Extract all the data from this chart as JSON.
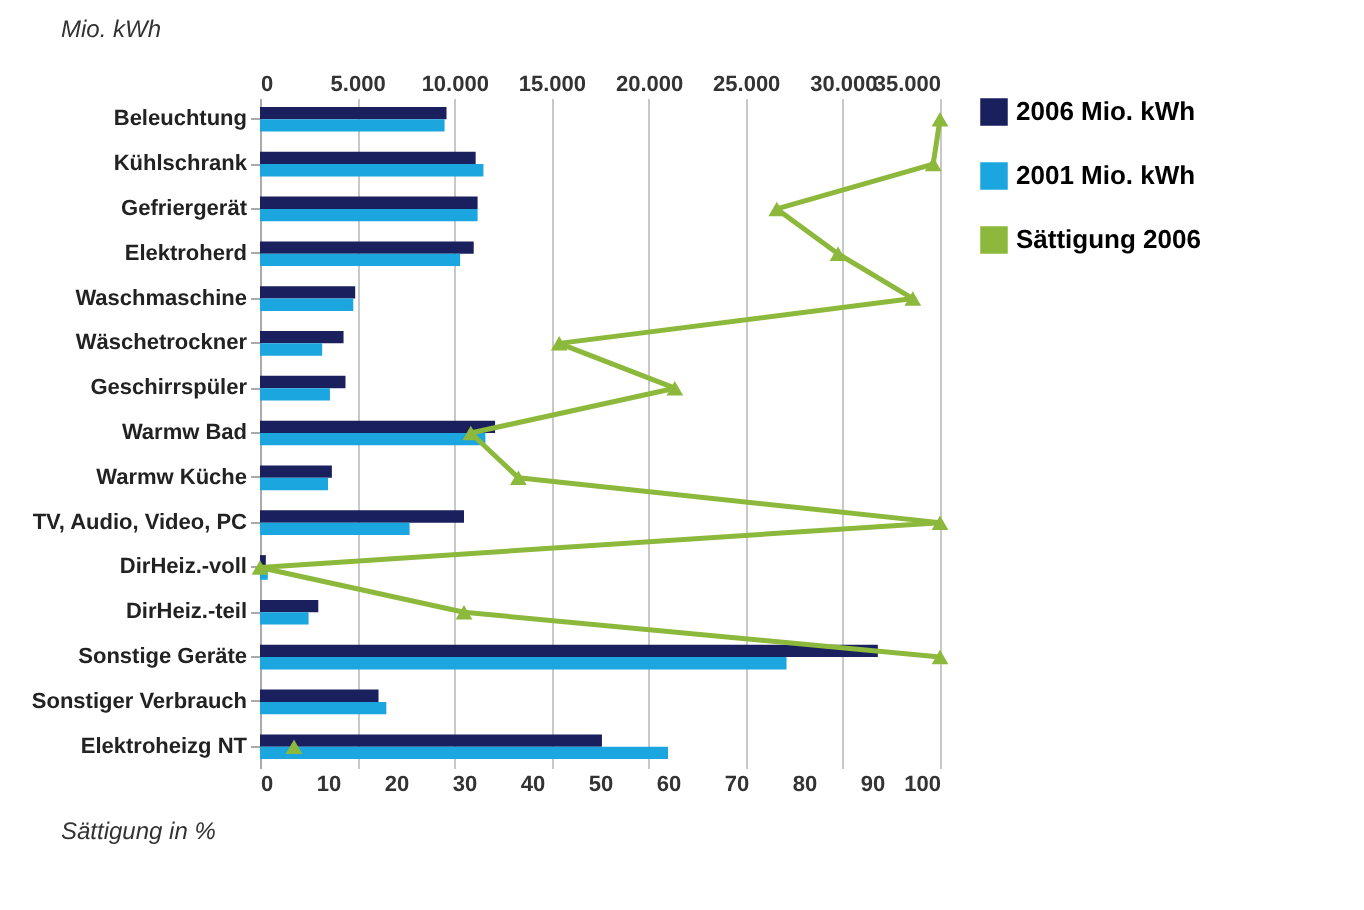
{
  "chart_data": {
    "type": "bar",
    "orientation": "horizontal",
    "categories": [
      "Beleuchtung",
      "Kühlschrank",
      "Gefriergerät",
      "Elektroherd",
      "Waschmaschine",
      "Wäschetrockner",
      "Geschirrspüler",
      "Warmw Bad",
      "Warmw Küche",
      "TV, Audio, Video, PC",
      "DirHeiz.-voll",
      "DirHeiz.-teil",
      "Sonstige Geräte",
      "Sonstiger Verbrauch",
      "Elektroheizg NT"
    ],
    "series": [
      {
        "name": "2006 Mio. kWh",
        "color": "#1a1f5e",
        "axis": "x2",
        "values": [
          9600,
          11100,
          11200,
          11000,
          4900,
          4300,
          4400,
          12100,
          3700,
          10500,
          300,
          3000,
          31800,
          6100,
          17600
        ]
      },
      {
        "name": "2001 Mio. kWh",
        "color": "#1ba6e0",
        "axis": "x2",
        "values": [
          9500,
          11500,
          11200,
          10300,
          4800,
          3200,
          3600,
          11600,
          3500,
          7700,
          400,
          2500,
          27100,
          6500,
          21000
        ]
      },
      {
        "name": "Sättigung 2006",
        "type": "line",
        "color": "#8cb83c",
        "marker": "triangle",
        "values": [
          100,
          99,
          76,
          85,
          96,
          44,
          61,
          31,
          38,
          100,
          0,
          30,
          100,
          null,
          5
        ]
      }
    ],
    "xlabel": "Sättigung in %",
    "x2label": "Mio. kWh",
    "xlim": [
      0,
      100
    ],
    "xticks": [
      0,
      10,
      20,
      30,
      40,
      50,
      60,
      70,
      80,
      90,
      100
    ],
    "x2lim": [
      0,
      35000
    ],
    "x2ticks": [
      0,
      {
        "value": 5000,
        "label": "5.000"
      },
      {
        "value": 10000,
        "label": "10.000"
      },
      {
        "value": 15000,
        "label": "15.000"
      },
      {
        "value": 20000,
        "label": "20.000"
      },
      {
        "value": 25000,
        "label": "25.000"
      },
      {
        "value": 30000,
        "label": "30.000"
      },
      {
        "value": 35000,
        "label": "35.000"
      }
    ],
    "grid": "x2",
    "legend": "right"
  }
}
